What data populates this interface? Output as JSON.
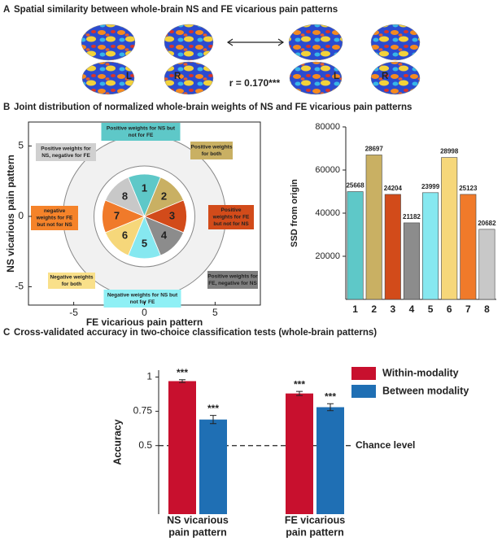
{
  "panel_a": {
    "letter": "A",
    "title": "Spatial similarity between whole-brain NS and FE vicarious pain patterns",
    "hemispheres": [
      "L",
      "R",
      "L",
      "R"
    ],
    "correlation": "r = 0.170***"
  },
  "chart_data": [
    {
      "type": "sectors",
      "letter": "B",
      "title": "Joint distribution of normalized whole-brain weights of NS and FE vicarious pain patterns",
      "xlabel": "FE vicarious pain pattern",
      "ylabel": "NS vicarious pain pattern",
      "xlim": [
        -8.2,
        8.2
      ],
      "ylim": [
        -6.3,
        6.7
      ],
      "xticks": [
        -5,
        0,
        5
      ],
      "yticks": [
        -5,
        0,
        5
      ],
      "sectors": [
        "1",
        "2",
        "3",
        "4",
        "5",
        "6",
        "7",
        "8"
      ],
      "colors": [
        "#5ec8c8",
        "#c9b063",
        "#d24b1a",
        "#8c8c8c",
        "#86e8f0",
        "#f6d77a",
        "#f07a2a",
        "#c8c8c8"
      ],
      "annotations": [
        [
          "Positive weights for NS but",
          "not for FE"
        ],
        [
          "Positive weights",
          "for both"
        ],
        [
          "Positive",
          "weights for FE",
          "but not for NS"
        ],
        [
          "Positive weights for",
          "FE, negative for NS"
        ],
        [
          "Negative weights for NS but",
          "not for FE"
        ],
        [
          "Negative weights",
          "for both"
        ],
        [
          "negative",
          "weights for FE",
          "but not for NS"
        ],
        [
          "Positive weights for",
          "NS, negative for FE"
        ]
      ],
      "annotation_colors": [
        "#5ec8c8",
        "#c9b063",
        "#d24b1a",
        "#7f7f7f",
        "#8ff0f5",
        "#f9e08a",
        "#f5832a",
        "#d0d0d0"
      ],
      "annotation_text_colors": [
        "#222222",
        "#222222",
        "#ffffff",
        "#ffffff",
        "#222222",
        "#222222",
        "#222222",
        "#222222"
      ]
    },
    {
      "type": "bar",
      "categories": [
        "1",
        "2",
        "3",
        "4",
        "5",
        "6",
        "7",
        "8"
      ],
      "values": [
        50000,
        67000,
        48700,
        35500,
        49500,
        65800,
        48700,
        32500
      ],
      "counts": [
        25668,
        28697,
        24204,
        21182,
        23999,
        28998,
        25123,
        20682
      ],
      "colors": [
        "#5ec8c8",
        "#c9b063",
        "#d24b1a",
        "#8c8c8c",
        "#86e8f0",
        "#f6d77a",
        "#f07a2a",
        "#c8c8c8"
      ],
      "ylabel": "SSD from origin",
      "ylim": [
        0,
        80000
      ],
      "yticks": [
        20000,
        40000,
        60000,
        80000
      ]
    },
    {
      "type": "grouped_bar",
      "letter": "C",
      "title": "Cross-validated accuracy in two-choice classification tests (whole-brain patterns)",
      "ylabel": "Accuracy",
      "categories": [
        [
          "NS vicarious",
          "pain pattern"
        ],
        [
          "FE vicarious",
          "pain pattern"
        ]
      ],
      "series": [
        {
          "name": "Within-modality",
          "color": "#c8102e",
          "values": [
            0.97,
            0.88
          ],
          "errors": [
            0.01,
            0.015
          ],
          "significance": [
            "***",
            "***"
          ]
        },
        {
          "name": "Between modality",
          "color": "#1f6fb4",
          "values": [
            0.69,
            0.78
          ],
          "errors": [
            0.03,
            0.025
          ],
          "significance": [
            "***",
            "***"
          ]
        }
      ],
      "ylim": [
        0,
        1.05
      ],
      "yticks": [
        0.5,
        0.75,
        1
      ],
      "reference": {
        "value": 0.5,
        "label": "Chance level"
      }
    }
  ]
}
